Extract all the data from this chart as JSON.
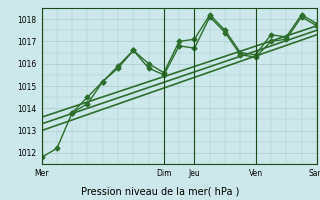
{
  "bg_color": "#cce8ea",
  "grid_color": "#aacccc",
  "line_color": "#2d6e2d",
  "dark_line_color": "#1a4a1a",
  "ylim": [
    1011.5,
    1018.5
  ],
  "yticks": [
    1012,
    1013,
    1014,
    1015,
    1016,
    1017,
    1018
  ],
  "xlabel": "Pression niveau de la mer( hPa )",
  "day_labels": [
    "Mer",
    "Dim",
    "Jeu",
    "Ven",
    "Sam"
  ],
  "day_positions": [
    0,
    8,
    10,
    14,
    18
  ],
  "xlim": [
    0,
    18
  ],
  "series": {
    "jagged1": {
      "x": [
        0,
        1,
        2,
        3,
        4,
        5,
        6,
        7,
        8,
        9,
        10,
        11,
        12,
        13,
        14,
        15,
        16,
        17,
        18
      ],
      "y": [
        1011.8,
        1012.2,
        1013.8,
        1014.5,
        1015.2,
        1015.8,
        1016.6,
        1016.0,
        1015.6,
        1017.0,
        1017.1,
        1018.2,
        1017.5,
        1016.5,
        1016.4,
        1017.3,
        1017.2,
        1018.2,
        1017.8
      ],
      "marker": "D",
      "ms": 2.5,
      "lw": 1.0
    },
    "jagged2": {
      "x": [
        2,
        3,
        4,
        5,
        6,
        7,
        8,
        9,
        10,
        11,
        12,
        13,
        14,
        15,
        16,
        17,
        18
      ],
      "y": [
        1013.8,
        1014.2,
        1015.2,
        1015.9,
        1016.6,
        1015.8,
        1015.5,
        1016.8,
        1016.7,
        1018.1,
        1017.4,
        1016.4,
        1016.3,
        1017.0,
        1017.1,
        1018.1,
        1017.7
      ],
      "marker": "D",
      "ms": 2.5,
      "lw": 1.0
    },
    "trend1": {
      "x": [
        0,
        18
      ],
      "y": [
        1013.0,
        1017.3
      ],
      "lw": 1.2
    },
    "trend2": {
      "x": [
        0,
        18
      ],
      "y": [
        1013.3,
        1017.5
      ],
      "lw": 1.2
    },
    "trend3": {
      "x": [
        0,
        18
      ],
      "y": [
        1013.6,
        1017.7
      ],
      "lw": 1.2
    }
  }
}
